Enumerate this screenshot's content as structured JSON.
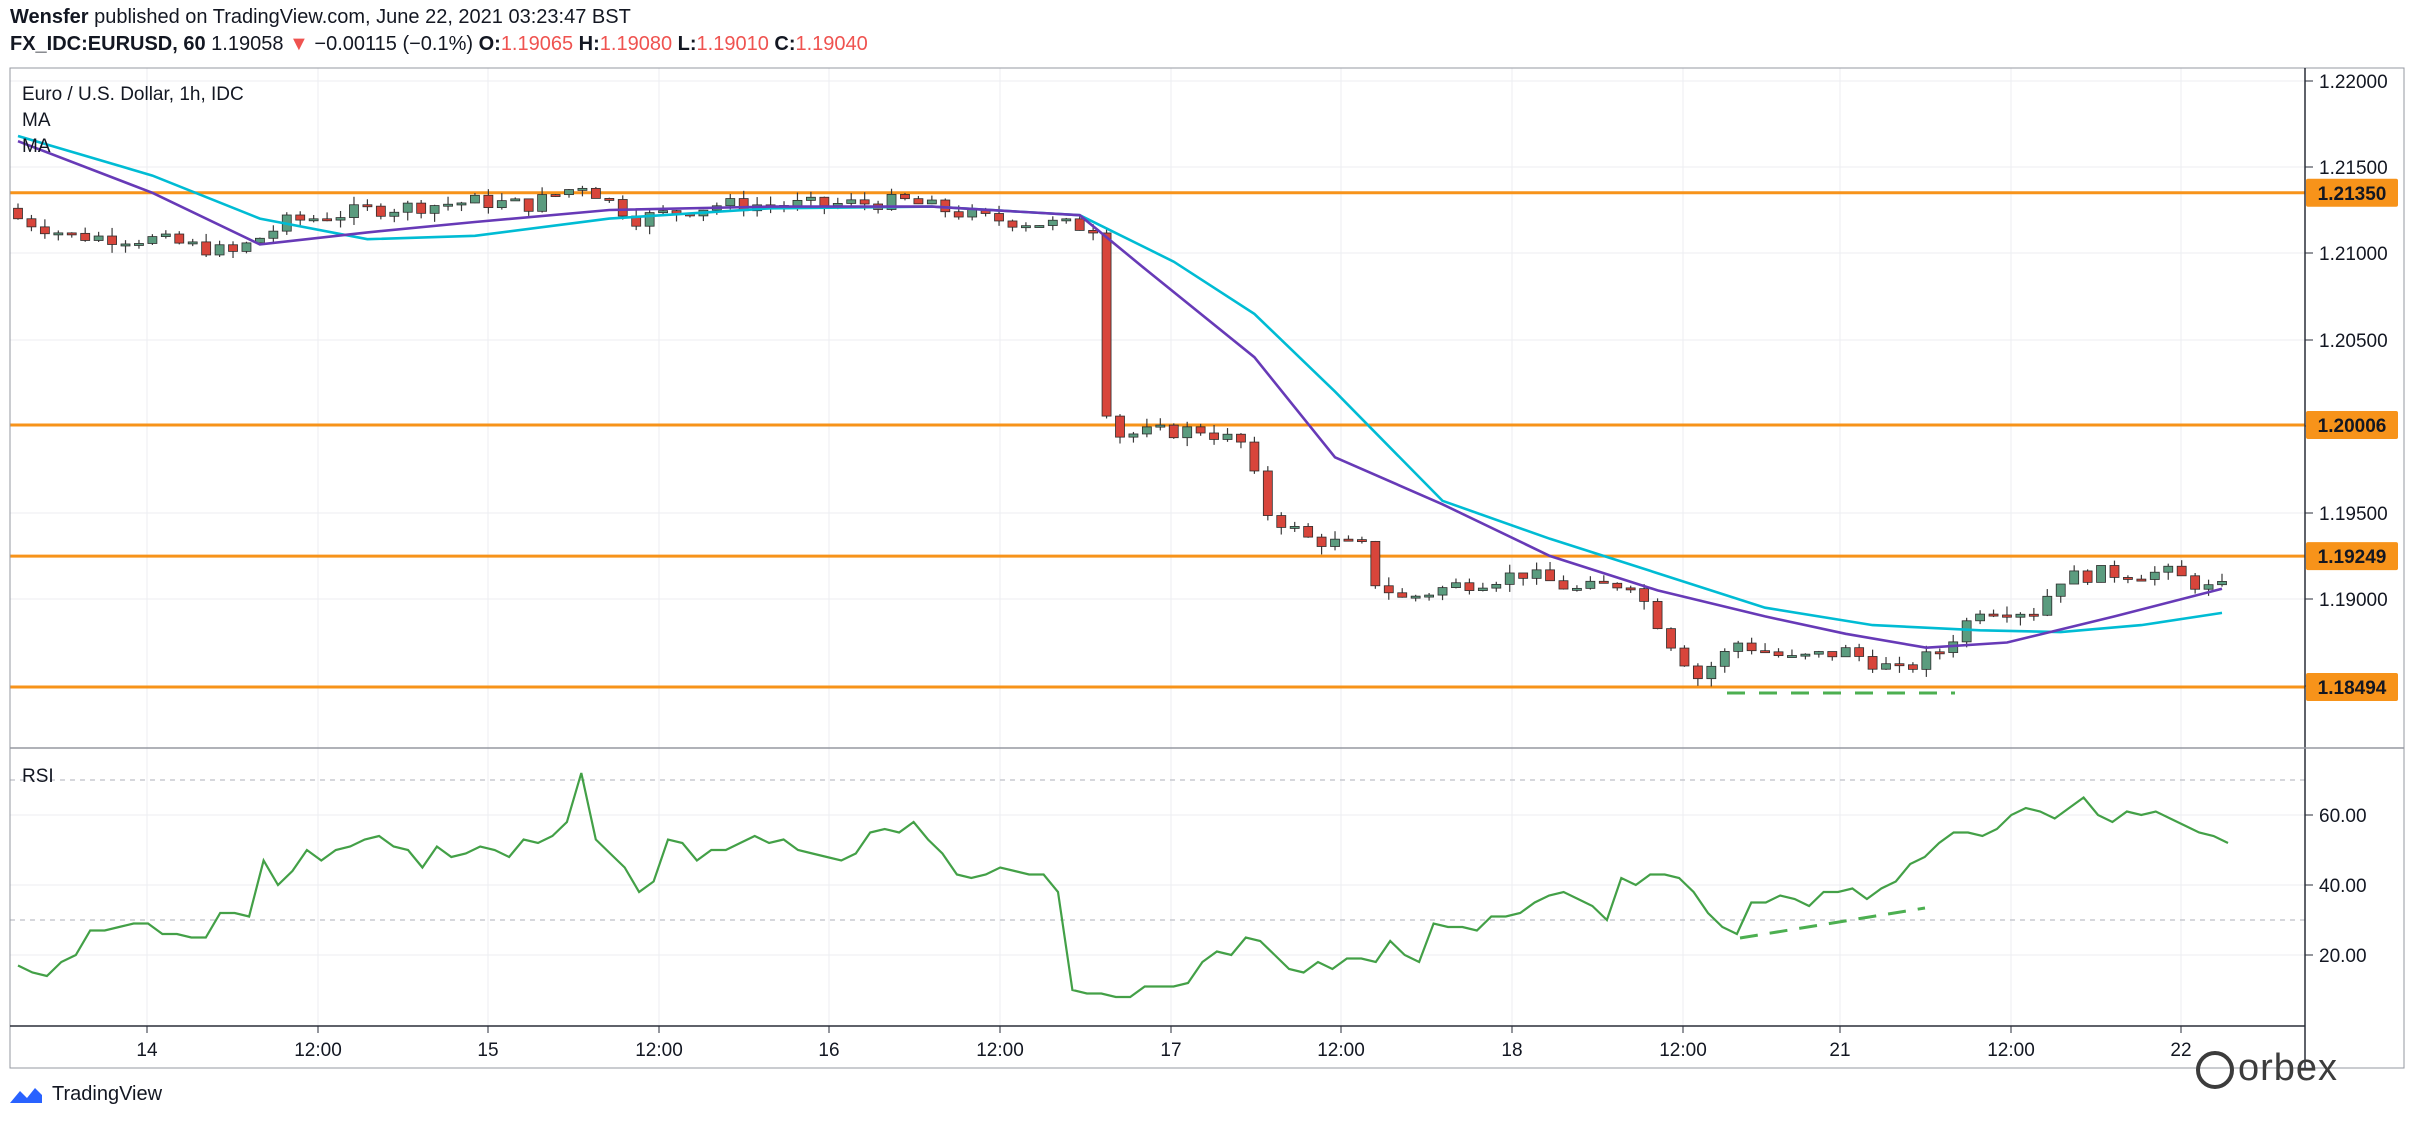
{
  "header": {
    "author": "Wensfer",
    "published": "published on TradingView.com, June 22, 2021 03:23:47 BST",
    "symbol": "FX_IDC:EURUSD, 60",
    "last": "1.19058",
    "change_arrow": "▼",
    "change": "−0.00115 (−0.1%)",
    "o_label": "O:",
    "o": "1.19065",
    "h_label": "H:",
    "h": "1.19080",
    "l_label": "L:",
    "l": "1.19010",
    "c_label": "C:",
    "c": "1.19040"
  },
  "legend": {
    "title": "Euro / U.S. Dollar, 1h, IDC",
    "ma1": "MA",
    "ma2": "MA",
    "rsi": "RSI"
  },
  "footer": {
    "brand": "TradingView",
    "watermark": "orbex"
  },
  "colors": {
    "up": "#5b9c7f",
    "down": "#d8453b",
    "ma_fast": "#673ab7",
    "ma_slow": "#00bcd4",
    "level": "#f7931a",
    "rsi": "#43a047",
    "annotation": "#4caf50",
    "grid": "#eceef2",
    "border": "#9598a1"
  },
  "chart_data": [
    {
      "type": "candlestick",
      "title": "Euro / U.S. Dollar, 1h, IDC",
      "x_ticks": [
        "14",
        "12:00",
        "15",
        "12:00",
        "16",
        "12:00",
        "17",
        "12:00",
        "18",
        "12:00",
        "21",
        "12:00",
        "22"
      ],
      "y_ticks": [
        "1.22000",
        "1.21500",
        "1.21000",
        "1.20500",
        "1.20000",
        "1.19500",
        "1.19000",
        "1.18500"
      ],
      "ylim": [
        1.1805,
        1.2215
      ],
      "horizontal_levels": [
        {
          "value": 1.2135,
          "label": "1.21350"
        },
        {
          "value": 1.20006,
          "label": "1.20006"
        },
        {
          "value": 1.19249,
          "label": "1.19249"
        },
        {
          "value": 1.18494,
          "label": "1.18494"
        }
      ],
      "ohlc_keypoints": [
        {
          "i": 0,
          "close": 1.212
        },
        {
          "i": 4,
          "close": 1.211
        },
        {
          "i": 10,
          "close": 1.2108
        },
        {
          "i": 16,
          "close": 1.21
        },
        {
          "i": 20,
          "close": 1.2118
        },
        {
          "i": 26,
          "close": 1.2125
        },
        {
          "i": 34,
          "close": 1.213
        },
        {
          "i": 38,
          "close": 1.2128
        },
        {
          "i": 42,
          "close": 1.214
        },
        {
          "i": 46,
          "close": 1.212
        },
        {
          "i": 52,
          "close": 1.2128
        },
        {
          "i": 60,
          "close": 1.2128
        },
        {
          "i": 66,
          "close": 1.213
        },
        {
          "i": 72,
          "close": 1.212
        },
        {
          "i": 80,
          "close": 1.2115
        },
        {
          "i": 81,
          "close": 1.201
        },
        {
          "i": 82,
          "close": 1.1995
        },
        {
          "i": 88,
          "close": 1.1998
        },
        {
          "i": 91,
          "close": 1.199
        },
        {
          "i": 93,
          "close": 1.195
        },
        {
          "i": 96,
          "close": 1.1935
        },
        {
          "i": 100,
          "close": 1.193
        },
        {
          "i": 101,
          "close": 1.191
        },
        {
          "i": 103,
          "close": 1.19
        },
        {
          "i": 107,
          "close": 1.1908
        },
        {
          "i": 112,
          "close": 1.1915
        },
        {
          "i": 116,
          "close": 1.1905
        },
        {
          "i": 120,
          "close": 1.191
        },
        {
          "i": 123,
          "close": 1.1875
        },
        {
          "i": 125,
          "close": 1.1855
        },
        {
          "i": 128,
          "close": 1.1875
        },
        {
          "i": 132,
          "close": 1.1865
        },
        {
          "i": 136,
          "close": 1.187
        },
        {
          "i": 140,
          "close": 1.1858
        },
        {
          "i": 143,
          "close": 1.187
        },
        {
          "i": 146,
          "close": 1.1895
        },
        {
          "i": 150,
          "close": 1.1893
        },
        {
          "i": 152,
          "close": 1.1912
        },
        {
          "i": 155,
          "close": 1.1915
        },
        {
          "i": 160,
          "close": 1.1915
        },
        {
          "i": 163,
          "close": 1.1906
        }
      ],
      "ma_fast": [
        [
          0,
          1.2165
        ],
        [
          10,
          1.2135
        ],
        [
          18,
          1.2105
        ],
        [
          26,
          1.2112
        ],
        [
          34,
          1.2118
        ],
        [
          44,
          1.2125
        ],
        [
          56,
          1.2127
        ],
        [
          68,
          1.2127
        ],
        [
          79,
          1.2122
        ],
        [
          84,
          1.209
        ],
        [
          92,
          1.204
        ],
        [
          98,
          1.1982
        ],
        [
          106,
          1.1955
        ],
        [
          114,
          1.1925
        ],
        [
          122,
          1.1905
        ],
        [
          130,
          1.189
        ],
        [
          136,
          1.188
        ],
        [
          142,
          1.1872
        ],
        [
          148,
          1.1875
        ],
        [
          156,
          1.189
        ],
        [
          164,
          1.1906
        ]
      ],
      "ma_slow": [
        [
          0,
          1.2168
        ],
        [
          10,
          1.2145
        ],
        [
          18,
          1.212
        ],
        [
          26,
          1.2108
        ],
        [
          34,
          1.211
        ],
        [
          44,
          1.212
        ],
        [
          56,
          1.2126
        ],
        [
          68,
          1.2127
        ],
        [
          79,
          1.2122
        ],
        [
          86,
          1.2095
        ],
        [
          92,
          1.2065
        ],
        [
          98,
          1.202
        ],
        [
          106,
          1.1957
        ],
        [
          114,
          1.1935
        ],
        [
          122,
          1.1915
        ],
        [
          130,
          1.1895
        ],
        [
          138,
          1.1885
        ],
        [
          146,
          1.1882
        ],
        [
          152,
          1.1881
        ],
        [
          158,
          1.1885
        ],
        [
          164,
          1.1892
        ]
      ]
    },
    {
      "type": "line",
      "title": "RSI",
      "y_ticks": [
        "60.00",
        "40.00",
        "20.00"
      ],
      "ylim": [
        5,
        77
      ],
      "bands": [
        70,
        30
      ],
      "values": [
        17,
        15,
        14,
        18,
        20,
        27,
        27,
        28,
        29,
        29,
        26,
        26,
        25,
        25,
        32,
        32,
        31,
        47,
        40,
        44,
        50,
        47,
        50,
        51,
        53,
        54,
        51,
        50,
        45,
        51,
        48,
        49,
        51,
        50,
        48,
        53,
        52,
        54,
        58,
        72,
        53,
        49,
        45,
        38,
        41,
        53,
        52,
        47,
        50,
        50,
        52,
        54,
        52,
        53,
        50,
        49,
        48,
        47,
        49,
        55,
        56,
        55,
        58,
        53,
        49,
        43,
        42,
        43,
        45,
        44,
        43,
        43,
        38,
        10,
        9,
        9,
        8,
        8,
        11,
        11,
        11,
        12,
        18,
        21,
        20,
        25,
        24,
        20,
        16,
        15,
        18,
        16,
        19,
        19,
        18,
        24,
        20,
        18,
        29,
        28,
        28,
        27,
        31,
        31,
        32,
        35,
        37,
        38,
        36,
        34,
        30,
        42,
        40,
        43,
        43,
        42,
        38,
        32,
        28,
        26,
        35,
        35,
        37,
        36,
        34,
        38,
        38,
        39,
        36,
        39,
        41,
        46,
        48,
        52,
        55,
        55,
        54,
        56,
        60,
        62,
        61,
        59,
        62,
        65,
        60,
        58,
        61,
        60,
        61,
        59,
        57,
        55,
        54,
        52
      ]
    }
  ]
}
